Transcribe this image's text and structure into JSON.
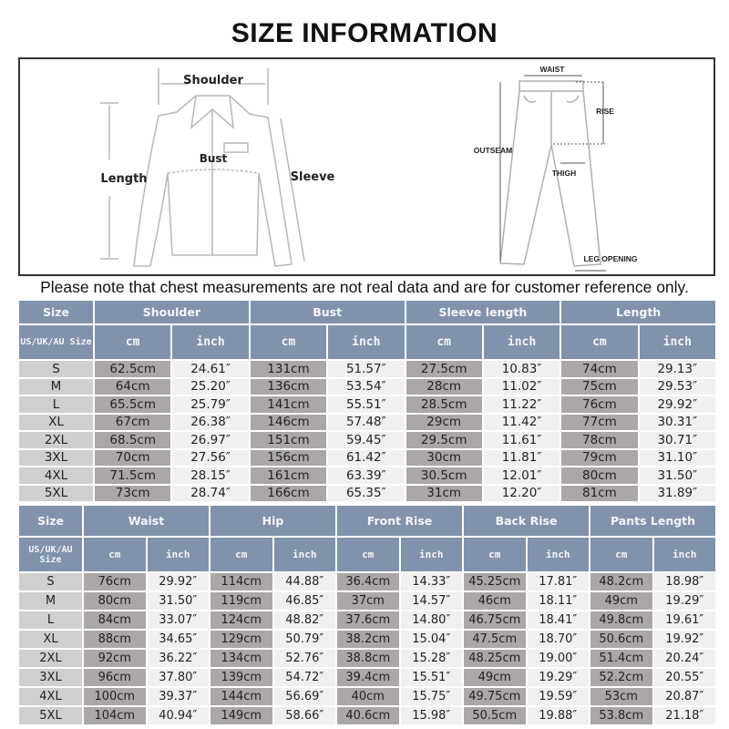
{
  "title": "SIZE INFORMATION",
  "diagram": {
    "shirt_labels": {
      "shoulder": "Shoulder",
      "bust": "Bust",
      "length": "Length",
      "sleeve": "Sleeve"
    },
    "pants_labels": {
      "waist": "WAIST",
      "rise": "RISE",
      "outseam": "OUTSEAM",
      "thigh": "THIGH",
      "leg_opening": "LEG OPENING"
    }
  },
  "note": "Please note that chest measurements are not real data and are for customer reference only.",
  "colors": {
    "header": "#8192ad",
    "cm_cell": "#aba7a7",
    "inch_cell": "#f0f0f0",
    "size_cell": "#cfcfcf"
  },
  "top_table": {
    "size_header": "Size",
    "size_subheader": "US/UK/AU Size",
    "cm_label": "cm",
    "inch_label": "inch",
    "groups": [
      "Shoulder",
      "Bust",
      "Sleeve length",
      "Length"
    ],
    "rows": [
      {
        "size": "S",
        "values": [
          "62.5cm",
          "24.61″",
          "131cm",
          "51.57″",
          "27.5cm",
          "10.83″",
          "74cm",
          "29.13″"
        ]
      },
      {
        "size": "M",
        "values": [
          "64cm",
          "25.20″",
          "136cm",
          "53.54″",
          "28cm",
          "11.02″",
          "75cm",
          "29.53″"
        ]
      },
      {
        "size": "L",
        "values": [
          "65.5cm",
          "25.79″",
          "141cm",
          "55.51″",
          "28.5cm",
          "11.22″",
          "76cm",
          "29.92″"
        ]
      },
      {
        "size": "XL",
        "values": [
          "67cm",
          "26.38″",
          "146cm",
          "57.48″",
          "29cm",
          "11.42″",
          "77cm",
          "30.31″"
        ]
      },
      {
        "size": "2XL",
        "values": [
          "68.5cm",
          "26.97″",
          "151cm",
          "59.45″",
          "29.5cm",
          "11.61″",
          "78cm",
          "30.71″"
        ]
      },
      {
        "size": "3XL",
        "values": [
          "70cm",
          "27.56″",
          "156cm",
          "61.42″",
          "30cm",
          "11.81″",
          "79cm",
          "31.10″"
        ]
      },
      {
        "size": "4XL",
        "values": [
          "71.5cm",
          "28.15″",
          "161cm",
          "63.39″",
          "30.5cm",
          "12.01″",
          "80cm",
          "31.50″"
        ]
      },
      {
        "size": "5XL",
        "values": [
          "73cm",
          "28.74″",
          "166cm",
          "65.35″",
          "31cm",
          "12.20″",
          "81cm",
          "31.89″"
        ]
      }
    ]
  },
  "bottom_table": {
    "size_header": "Size",
    "size_subheader": "US/UK/AU Size",
    "cm_label": "cm",
    "inch_label": "inch",
    "groups": [
      "Waist",
      "Hip",
      "Front Rise",
      "Back Rise",
      "Pants Length"
    ],
    "rows": [
      {
        "size": "S",
        "values": [
          "76cm",
          "29.92″",
          "114cm",
          "44.88″",
          "36.4cm",
          "14.33″",
          "45.25cm",
          "17.81″",
          "48.2cm",
          "18.98″"
        ]
      },
      {
        "size": "M",
        "values": [
          "80cm",
          "31.50″",
          "119cm",
          "46.85″",
          "37cm",
          "14.57″",
          "46cm",
          "18.11″",
          "49cm",
          "19.29″"
        ]
      },
      {
        "size": "L",
        "values": [
          "84cm",
          "33.07″",
          "124cm",
          "48.82″",
          "37.6cm",
          "14.80″",
          "46.75cm",
          "18.41″",
          "49.8cm",
          "19.61″"
        ]
      },
      {
        "size": "XL",
        "values": [
          "88cm",
          "34.65″",
          "129cm",
          "50.79″",
          "38.2cm",
          "15.04″",
          "47.5cm",
          "18.70″",
          "50.6cm",
          "19.92″"
        ]
      },
      {
        "size": "2XL",
        "values": [
          "92cm",
          "36.22″",
          "134cm",
          "52.76″",
          "38.8cm",
          "15.28″",
          "48.25cm",
          "19.00″",
          "51.4cm",
          "20.24″"
        ]
      },
      {
        "size": "3XL",
        "values": [
          "96cm",
          "37.80″",
          "139cm",
          "54.72″",
          "39.4cm",
          "15.51″",
          "49cm",
          "19.29″",
          "52.2cm",
          "20.55″"
        ]
      },
      {
        "size": "4XL",
        "values": [
          "100cm",
          "39.37″",
          "144cm",
          "56.69″",
          "40cm",
          "15.75″",
          "49.75cm",
          "19.59″",
          "53cm",
          "20.87″"
        ]
      },
      {
        "size": "5XL",
        "values": [
          "104cm",
          "40.94″",
          "149cm",
          "58.66″",
          "40.6cm",
          "15.98″",
          "50.5cm",
          "19.88″",
          "53.8cm",
          "21.18″"
        ]
      }
    ]
  }
}
